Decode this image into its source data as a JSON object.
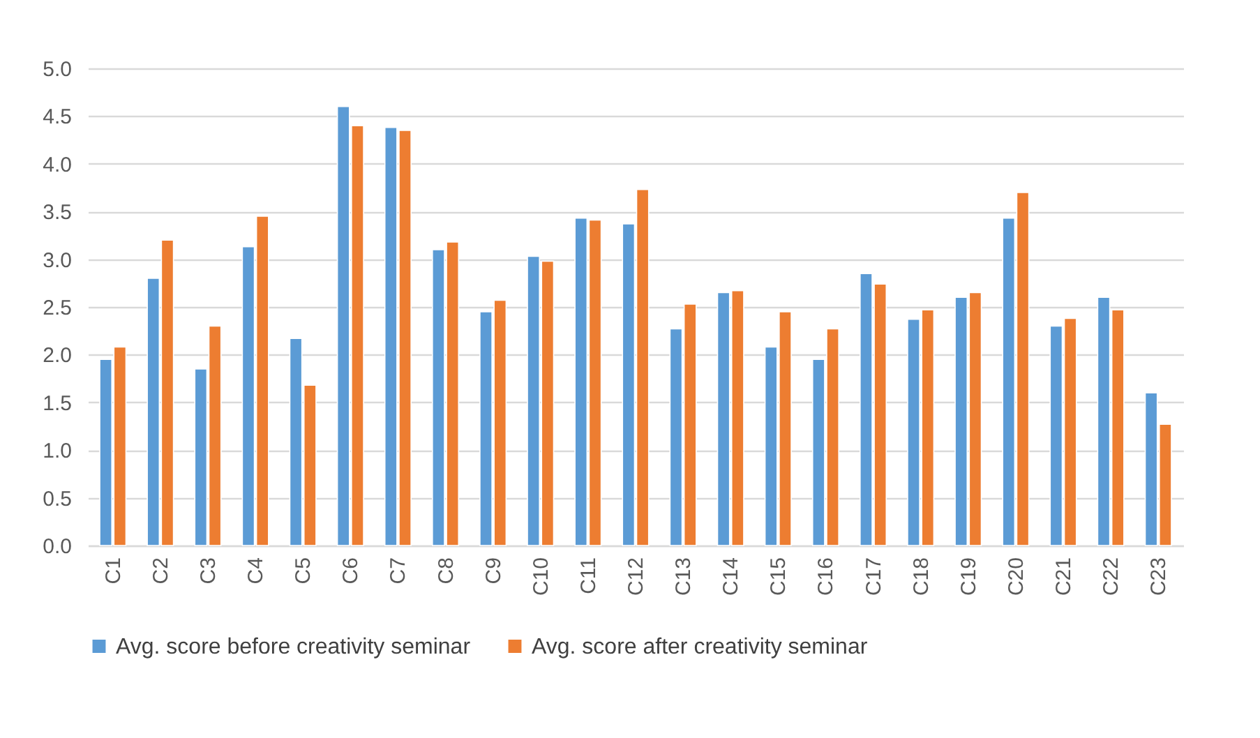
{
  "chart_data": {
    "type": "bar",
    "categories": [
      "C1",
      "C2",
      "C3",
      "C4",
      "C5",
      "C6",
      "C7",
      "C8",
      "C9",
      "C10",
      "C11",
      "C12",
      "C13",
      "C14",
      "C15",
      "C16",
      "C17",
      "C18",
      "C19",
      "C20",
      "C21",
      "C22",
      "C23"
    ],
    "series": [
      {
        "name": "Avg. score before creativity seminar",
        "color": "#5b9bd5",
        "values": [
          1.95,
          2.8,
          1.85,
          3.13,
          2.17,
          4.6,
          4.38,
          3.1,
          2.45,
          3.03,
          3.43,
          3.37,
          2.27,
          2.65,
          2.08,
          1.95,
          2.85,
          2.37,
          2.6,
          3.43,
          2.3,
          2.6,
          1.6
        ]
      },
      {
        "name": "Avg. score after creativity seminar",
        "color": "#ed7d31",
        "values": [
          2.08,
          3.2,
          2.3,
          3.45,
          1.68,
          4.4,
          4.35,
          3.18,
          2.57,
          2.98,
          3.41,
          3.73,
          2.53,
          2.67,
          2.45,
          2.27,
          2.74,
          2.47,
          2.65,
          3.7,
          2.38,
          2.47,
          1.27
        ]
      }
    ],
    "ylim": [
      0,
      5
    ],
    "yticks": [
      {
        "value": 0,
        "label": "0.0"
      },
      {
        "value": 0.5,
        "label": "0.5"
      },
      {
        "value": 1,
        "label": "1.0"
      },
      {
        "value": 1.5,
        "label": "1.5"
      },
      {
        "value": 2,
        "label": "2.0"
      },
      {
        "value": 2.5,
        "label": "2.5"
      },
      {
        "value": 3,
        "label": "3.0"
      },
      {
        "value": 3.5,
        "label": "3.5"
      },
      {
        "value": 4,
        "label": "4.0"
      },
      {
        "value": 4.5,
        "label": "4.5"
      },
      {
        "value": 5,
        "label": "5.0"
      }
    ],
    "grid": "y",
    "legend": "bottom"
  }
}
